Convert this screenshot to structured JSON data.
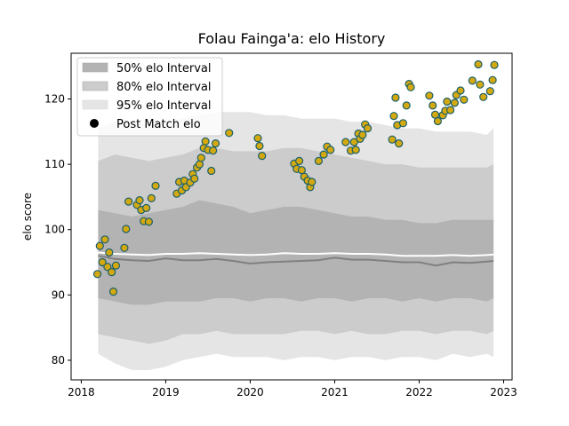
{
  "chart_data": {
    "type": "scatter",
    "title": "Folau Fainga'a: elo History",
    "xlabel": "",
    "ylabel": "elo score",
    "xlim": [
      2017.88,
      2023.1
    ],
    "ylim": [
      77,
      127
    ],
    "x_ticks": [
      2018,
      2019,
      2020,
      2021,
      2022,
      2023
    ],
    "x_tick_labels": [
      "2018",
      "2019",
      "2020",
      "2021",
      "2022",
      "2023"
    ],
    "y_ticks": [
      80,
      90,
      100,
      110,
      120
    ],
    "y_tick_labels": [
      "80",
      "90",
      "100",
      "110",
      "120"
    ],
    "legend_position": "top-left",
    "legend": [
      {
        "label": "50% elo Interval",
        "kind": "band50"
      },
      {
        "label": "80% elo Interval",
        "kind": "band80"
      },
      {
        "label": "95% elo Interval",
        "kind": "band95"
      },
      {
        "label": "Post Match elo",
        "kind": "marker"
      }
    ],
    "colors": {
      "band50": "#b3b3b3",
      "band80": "#cccccc",
      "band95": "#e5e5e5",
      "median_line": "#808080",
      "mean_line": "#ffffff",
      "marker_fill": "#d4a90f",
      "marker_edge": "#1b5f6b"
    },
    "bands": {
      "x": [
        2018.2,
        2018.4,
        2018.6,
        2018.8,
        2019.0,
        2019.2,
        2019.4,
        2019.6,
        2019.8,
        2020.0,
        2020.2,
        2020.4,
        2020.6,
        2020.8,
        2021.0,
        2021.2,
        2021.4,
        2021.6,
        2021.8,
        2022.0,
        2022.2,
        2022.4,
        2022.6,
        2022.8,
        2022.88
      ],
      "p95_lo": [
        81.0,
        79.5,
        78.5,
        78.5,
        79.0,
        80.0,
        80.5,
        81.0,
        80.5,
        80.5,
        80.5,
        80.0,
        80.5,
        80.5,
        80.0,
        80.5,
        80.5,
        80.0,
        80.5,
        80.5,
        80.0,
        81.0,
        80.5,
        81.0,
        80.5
      ],
      "p80_lo": [
        84.0,
        83.5,
        83.0,
        82.5,
        83.0,
        84.0,
        84.0,
        84.5,
        84.0,
        84.0,
        84.0,
        84.0,
        84.5,
        84.5,
        84.0,
        84.5,
        84.0,
        84.0,
        84.5,
        84.5,
        84.0,
        84.5,
        84.5,
        84.0,
        84.5
      ],
      "p50_lo": [
        89.5,
        89.0,
        88.5,
        88.5,
        89.0,
        89.0,
        89.0,
        89.5,
        89.5,
        89.0,
        89.5,
        89.5,
        89.0,
        89.5,
        89.5,
        89.0,
        89.5,
        89.5,
        89.0,
        89.5,
        89.0,
        89.5,
        89.5,
        89.0,
        89.5
      ],
      "median": [
        96.0,
        95.5,
        95.3,
        95.2,
        95.6,
        95.3,
        95.3,
        95.5,
        95.2,
        94.8,
        95.0,
        95.1,
        95.2,
        95.3,
        95.7,
        95.4,
        95.4,
        95.2,
        95.0,
        95.0,
        94.5,
        95.0,
        94.9,
        95.1,
        95.2
      ],
      "mean": [
        96.5,
        96.3,
        96.2,
        96.1,
        96.3,
        96.3,
        96.4,
        96.3,
        96.2,
        96.1,
        96.2,
        96.4,
        96.3,
        96.3,
        96.4,
        96.3,
        96.3,
        96.2,
        96.0,
        96.0,
        96.0,
        96.1,
        96.0,
        96.1,
        96.2
      ],
      "p50_hi": [
        103.0,
        102.5,
        102.0,
        102.5,
        103.0,
        103.5,
        104.5,
        104.0,
        103.5,
        102.5,
        103.0,
        103.5,
        103.5,
        103.0,
        102.5,
        102.0,
        102.0,
        101.5,
        101.5,
        101.0,
        101.0,
        101.5,
        101.5,
        101.5,
        101.5
      ],
      "p80_hi": [
        110.5,
        111.5,
        111.0,
        110.5,
        111.0,
        111.5,
        112.5,
        112.5,
        112.0,
        112.0,
        112.0,
        112.5,
        112.5,
        112.0,
        111.5,
        111.0,
        110.5,
        110.0,
        110.0,
        109.5,
        109.5,
        109.5,
        109.5,
        109.5,
        110.0
      ],
      "p95_hi": [
        115.5,
        116.5,
        116.5,
        116.0,
        116.5,
        117.0,
        117.5,
        118.0,
        118.0,
        118.0,
        117.5,
        117.5,
        117.0,
        117.0,
        117.0,
        116.5,
        116.5,
        116.0,
        115.5,
        115.5,
        115.0,
        115.0,
        115.0,
        114.5,
        115.5
      ]
    },
    "points": {
      "x": [
        2018.19,
        2018.22,
        2018.25,
        2018.28,
        2018.31,
        2018.33,
        2018.36,
        2018.38,
        2018.41,
        2018.51,
        2018.53,
        2018.56,
        2018.66,
        2018.69,
        2018.71,
        2018.74,
        2018.77,
        2018.8,
        2018.83,
        2018.88,
        2019.13,
        2019.16,
        2019.19,
        2019.22,
        2019.24,
        2019.29,
        2019.32,
        2019.34,
        2019.37,
        2019.4,
        2019.42,
        2019.45,
        2019.47,
        2019.5,
        2019.54,
        2019.56,
        2019.59,
        2019.75,
        2020.09,
        2020.11,
        2020.14,
        2020.52,
        2020.55,
        2020.58,
        2020.61,
        2020.64,
        2020.68,
        2020.71,
        2020.73,
        2020.81,
        2020.87,
        2020.91,
        2020.95,
        2021.13,
        2021.19,
        2021.23,
        2021.25,
        2021.28,
        2021.3,
        2021.33,
        2021.36,
        2021.39,
        2021.68,
        2021.7,
        2021.72,
        2021.74,
        2021.76,
        2021.81,
        2021.85,
        2021.88,
        2021.9,
        2022.12,
        2022.16,
        2022.19,
        2022.22,
        2022.28,
        2022.31,
        2022.33,
        2022.37,
        2022.42,
        2022.44,
        2022.49,
        2022.53,
        2022.63,
        2022.7,
        2022.72,
        2022.76,
        2022.84,
        2022.87,
        2022.89
      ],
      "y": [
        93.2,
        97.5,
        95.0,
        98.5,
        94.3,
        96.5,
        93.5,
        90.5,
        94.5,
        97.2,
        100.1,
        104.3,
        103.8,
        104.5,
        103.0,
        101.3,
        103.3,
        101.2,
        104.8,
        106.7,
        105.5,
        107.3,
        106.0,
        107.5,
        106.5,
        107.2,
        108.5,
        107.8,
        109.5,
        110.0,
        111.0,
        112.5,
        113.5,
        112.2,
        109.0,
        112.1,
        113.2,
        114.8,
        114.0,
        112.8,
        111.3,
        110.1,
        109.3,
        110.5,
        109.1,
        108.1,
        107.5,
        106.5,
        107.3,
        110.5,
        111.5,
        112.7,
        112.2,
        113.4,
        112.1,
        113.4,
        112.2,
        114.7,
        113.9,
        114.5,
        116.1,
        115.5,
        113.8,
        117.4,
        120.2,
        116.0,
        113.2,
        116.3,
        119.0,
        122.3,
        121.8,
        120.5,
        119.0,
        117.6,
        116.6,
        117.5,
        118.2,
        119.6,
        118.3,
        119.4,
        120.6,
        121.3,
        119.9,
        122.8,
        125.3,
        122.2,
        120.3,
        121.2,
        122.9,
        125.2
      ]
    }
  }
}
